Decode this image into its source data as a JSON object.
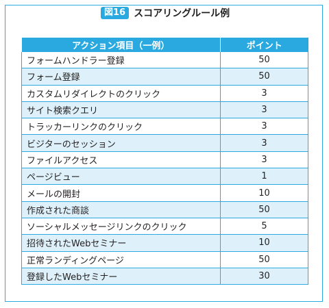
{
  "figure": {
    "badge": "図16",
    "title": "スコアリングルール例"
  },
  "table": {
    "headers": [
      "アクション項目（一例）",
      "ポイント"
    ],
    "rows": [
      {
        "action": "フォームハンドラー登録",
        "points": "50"
      },
      {
        "action": "フォーム登録",
        "points": "50"
      },
      {
        "action": "カスタムリダイレクトのクリック",
        "points": "3"
      },
      {
        "action": "サイト検索クエリ",
        "points": "3"
      },
      {
        "action": "トラッカーリンクのクリック",
        "points": "3"
      },
      {
        "action": "ビジターのセッション",
        "points": "3"
      },
      {
        "action": "ファイルアクセス",
        "points": "3"
      },
      {
        "action": "ページビュー",
        "points": "1"
      },
      {
        "action": "メールの開封",
        "points": "10"
      },
      {
        "action": "作成された商談",
        "points": "50"
      },
      {
        "action": "ソーシャルメッセージリンクのクリック",
        "points": "5"
      },
      {
        "action": "招待されたWebセミナー",
        "points": "10"
      },
      {
        "action": "正常ランディングページ",
        "points": "50"
      },
      {
        "action": "登録したWebセミナー",
        "points": "30"
      }
    ]
  },
  "colors": {
    "accent": "#29a9e0",
    "stripe": "#def1fa"
  }
}
